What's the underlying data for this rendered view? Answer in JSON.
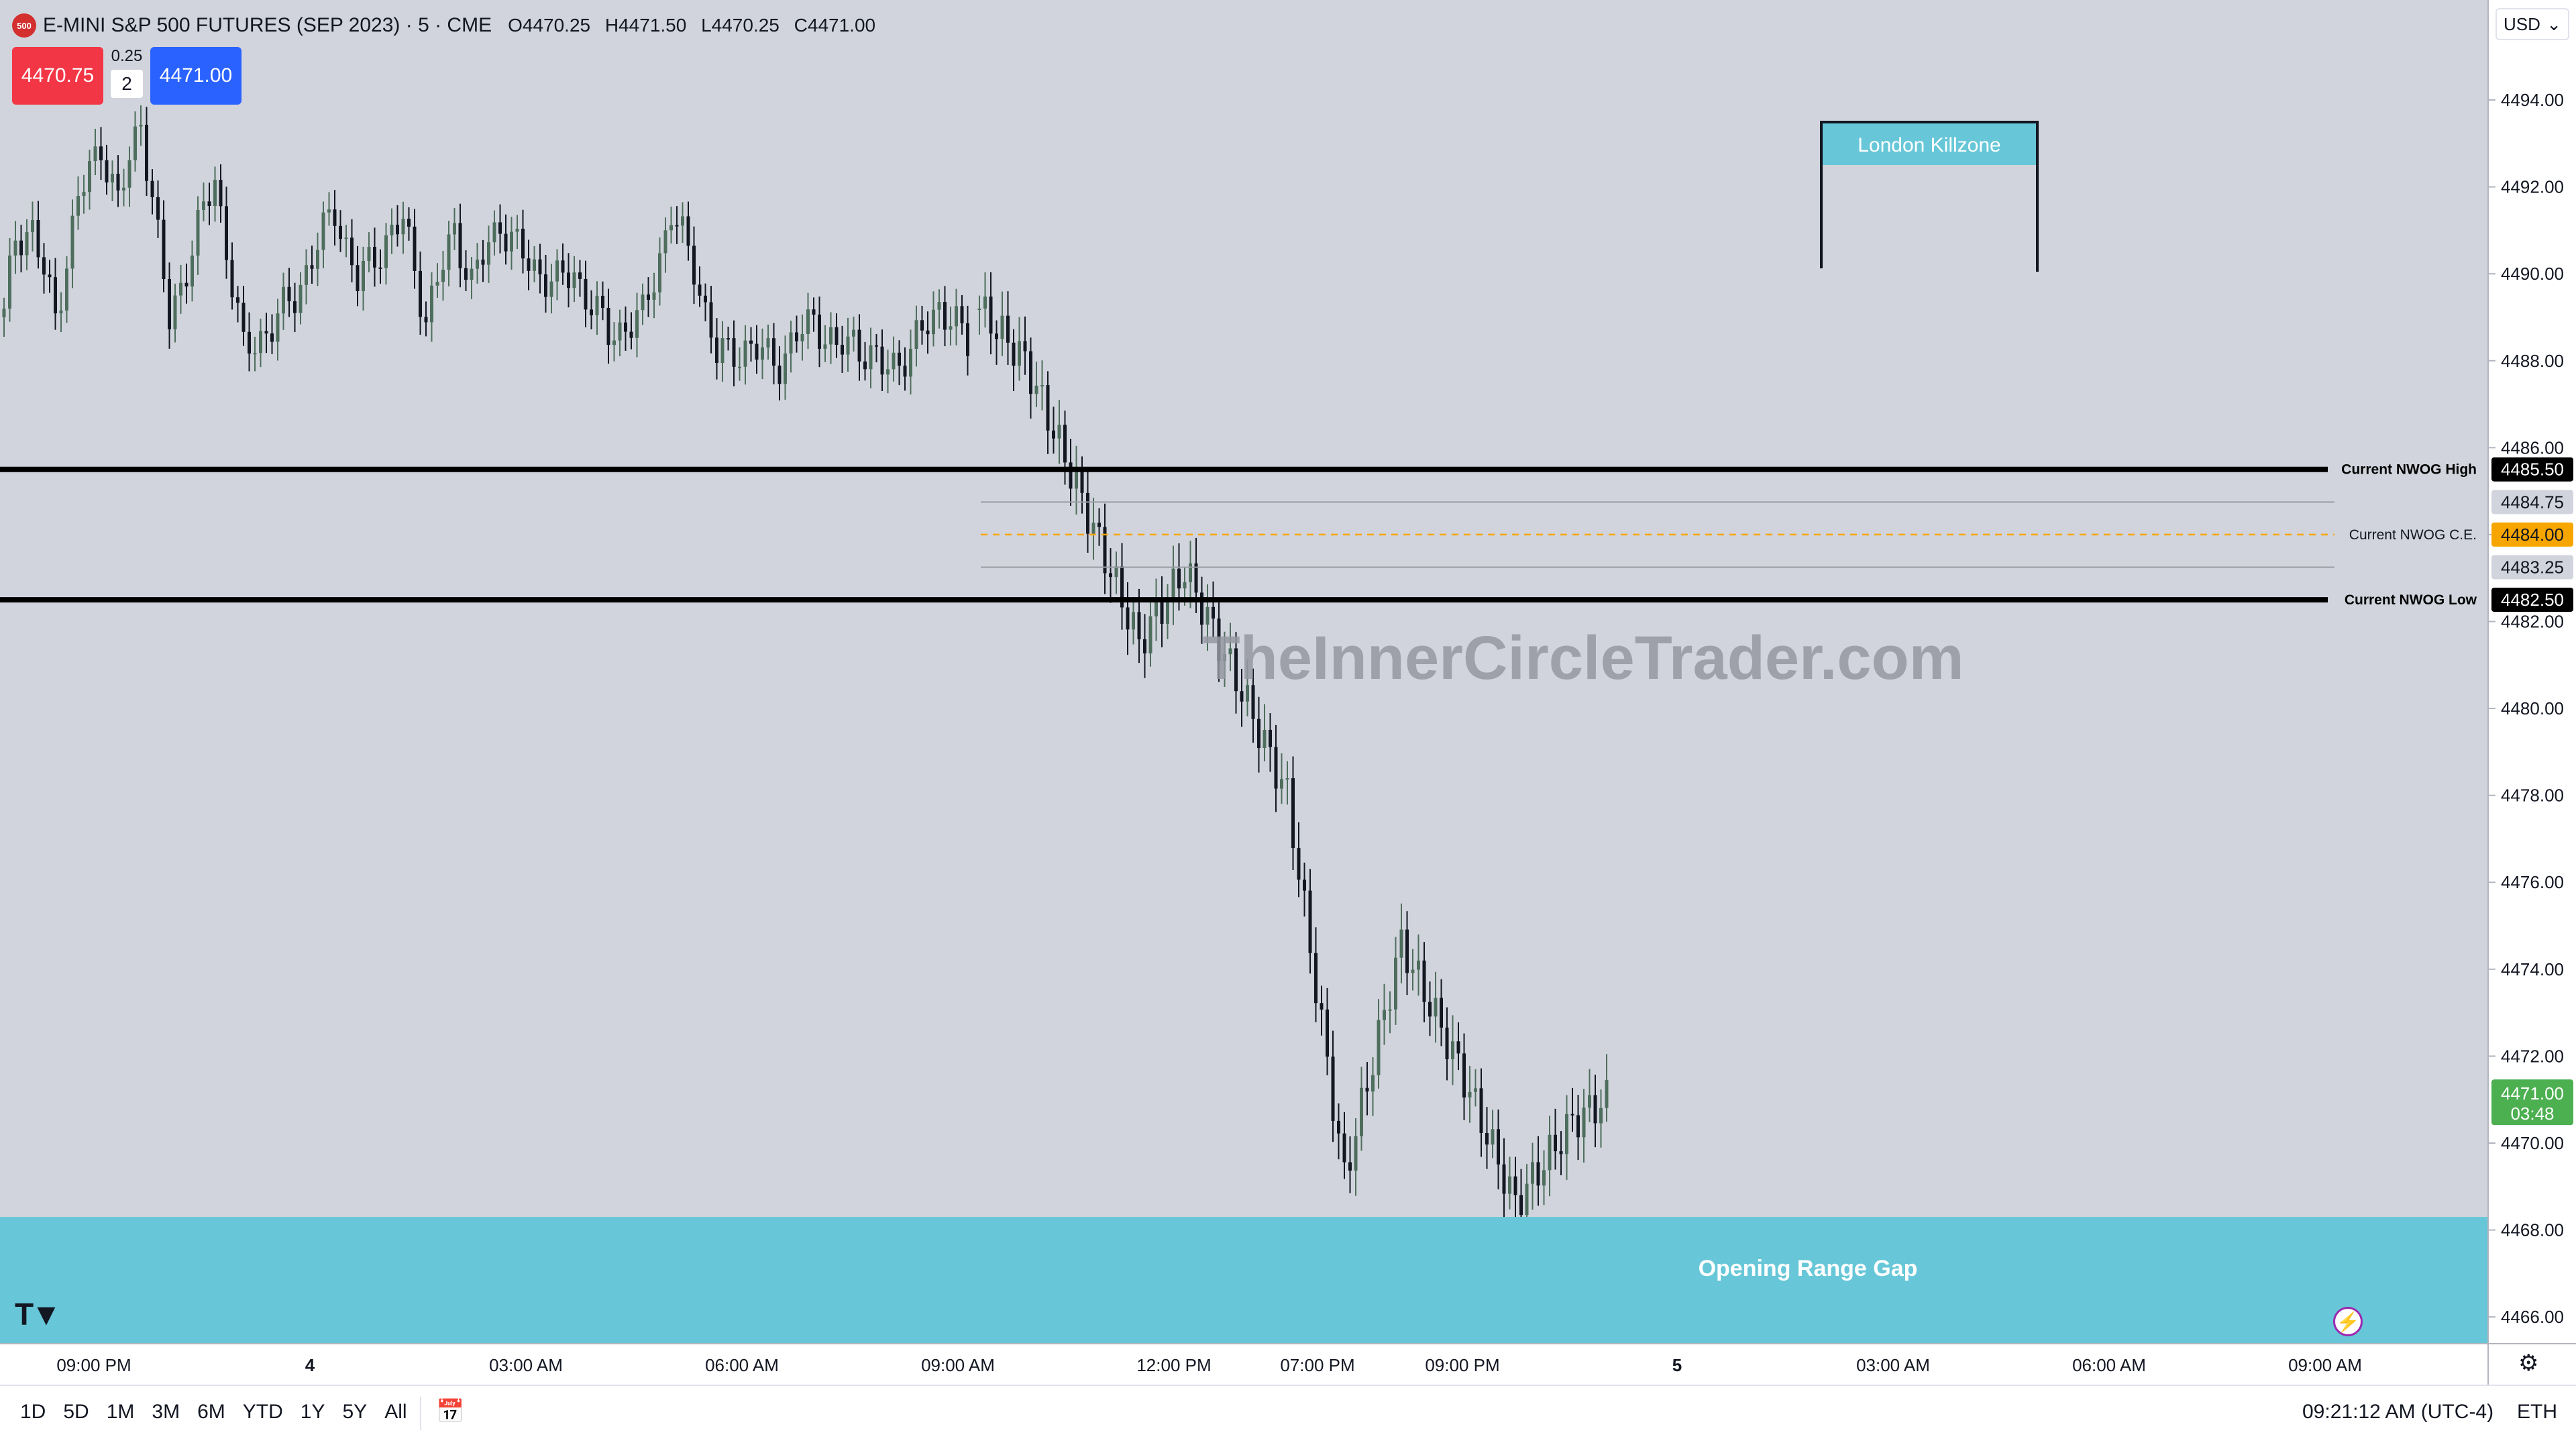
{
  "header": {
    "symbol_icon": "500",
    "title": "E-MINI S&P 500 FUTURES (SEP 2023) · 5 · CME",
    "open": "O4470.25",
    "high": "H4471.50",
    "low": "L4470.25",
    "close": "C4471.00",
    "sell_price": "4470.75",
    "buy_price": "4471.00",
    "spread": "0.25",
    "quantity": "2",
    "currency": "USD"
  },
  "colors": {
    "background": "#d1d4dc",
    "candle_up": "#4e6e5d",
    "candle_down": "#131722",
    "box_fill": "#67c7d8",
    "ce_line": "#f7a600",
    "last_price": "#4caf50",
    "sell": "#f23645",
    "buy": "#2962ff"
  },
  "chart_data": {
    "type": "candlestick",
    "instrument": "E-MINI S&P 500 FUTURES (SEP 2023)",
    "interval": "5",
    "y_ticks": [
      "4494.00",
      "4492.00",
      "4490.00",
      "4488.00",
      "4486.00",
      "4484.00",
      "4482.00",
      "4480.00",
      "4478.00",
      "4476.00",
      "4474.00",
      "4472.00",
      "4470.00",
      "4468.00",
      "4466.00"
    ],
    "ylim": [
      4465.4,
      4496.3
    ],
    "x_ticks": [
      "09:00 PM",
      "4",
      "03:00 AM",
      "06:00 AM",
      "09:00 AM",
      "12:00 PM",
      "07:00 PM",
      "09:00 PM",
      "5",
      "03:00 AM",
      "06:00 AM",
      "09:00 AM"
    ],
    "close_path": [
      [
        0,
        4489.0
      ],
      [
        2,
        4490.9
      ],
      [
        5,
        4491.0
      ],
      [
        9,
        4489.0
      ],
      [
        13,
        4491.7
      ],
      [
        17,
        4493.0
      ],
      [
        20,
        4491.6
      ],
      [
        24,
        4493.6
      ],
      [
        29,
        4488.9
      ],
      [
        33,
        4490.6
      ],
      [
        37,
        4492.2
      ],
      [
        42,
        4488.2
      ],
      [
        47,
        4488.8
      ],
      [
        51,
        4489.5
      ],
      [
        58,
        4491.5
      ],
      [
        62,
        4489.8
      ],
      [
        67,
        4490.8
      ],
      [
        70,
        4491.2
      ],
      [
        74,
        4489.0
      ],
      [
        79,
        4491.0
      ],
      [
        82,
        4489.8
      ],
      [
        87,
        4491.2
      ],
      [
        92,
        4490.2
      ],
      [
        97,
        4489.8
      ],
      [
        100,
        4490.0
      ],
      [
        106,
        4488.6
      ],
      [
        112,
        4489.0
      ],
      [
        117,
        4491.4
      ],
      [
        121,
        4490.2
      ],
      [
        125,
        4488.1
      ],
      [
        130,
        4488.3
      ],
      [
        136,
        4488.0
      ],
      [
        142,
        4489.0
      ],
      [
        146,
        4488.2
      ],
      [
        149,
        4488.5
      ],
      [
        154,
        4487.8
      ],
      [
        159,
        4488.2
      ],
      [
        164,
        4489.3
      ],
      [
        169,
        4488.4
      ]
    ],
    "last_price": "4471.00",
    "countdown": "03:48",
    "levels": [
      {
        "label": "Current NWOG High",
        "price": "4485.50",
        "style": "solid-black"
      },
      {
        "label": "",
        "price": "4484.75",
        "style": "thin-gray"
      },
      {
        "label": "Current NWOG C.E.",
        "price": "4484.00",
        "style": "dashed-orange"
      },
      {
        "label": "",
        "price": "4483.25",
        "style": "thin-gray"
      },
      {
        "label": "Current NWOG Low",
        "price": "4482.50",
        "style": "solid-black"
      }
    ],
    "annotations": [
      {
        "type": "bracket",
        "label": "London Killzone"
      },
      {
        "type": "zone",
        "label": "Opening Range Gap",
        "from": 4464.5,
        "to": 4468.3
      }
    ],
    "watermark": "TheInnerCircleTrader.com"
  },
  "footer": {
    "ranges": [
      "1D",
      "5D",
      "1M",
      "3M",
      "6M",
      "YTD",
      "1Y",
      "5Y",
      "All"
    ],
    "clock": "09:21:12 AM (UTC-4)",
    "session": "ETH"
  },
  "icons": {
    "calendar": "calendar-icon",
    "settings": "gear-icon",
    "bolt": "lightning-icon",
    "logo": "tradingview-logo"
  }
}
